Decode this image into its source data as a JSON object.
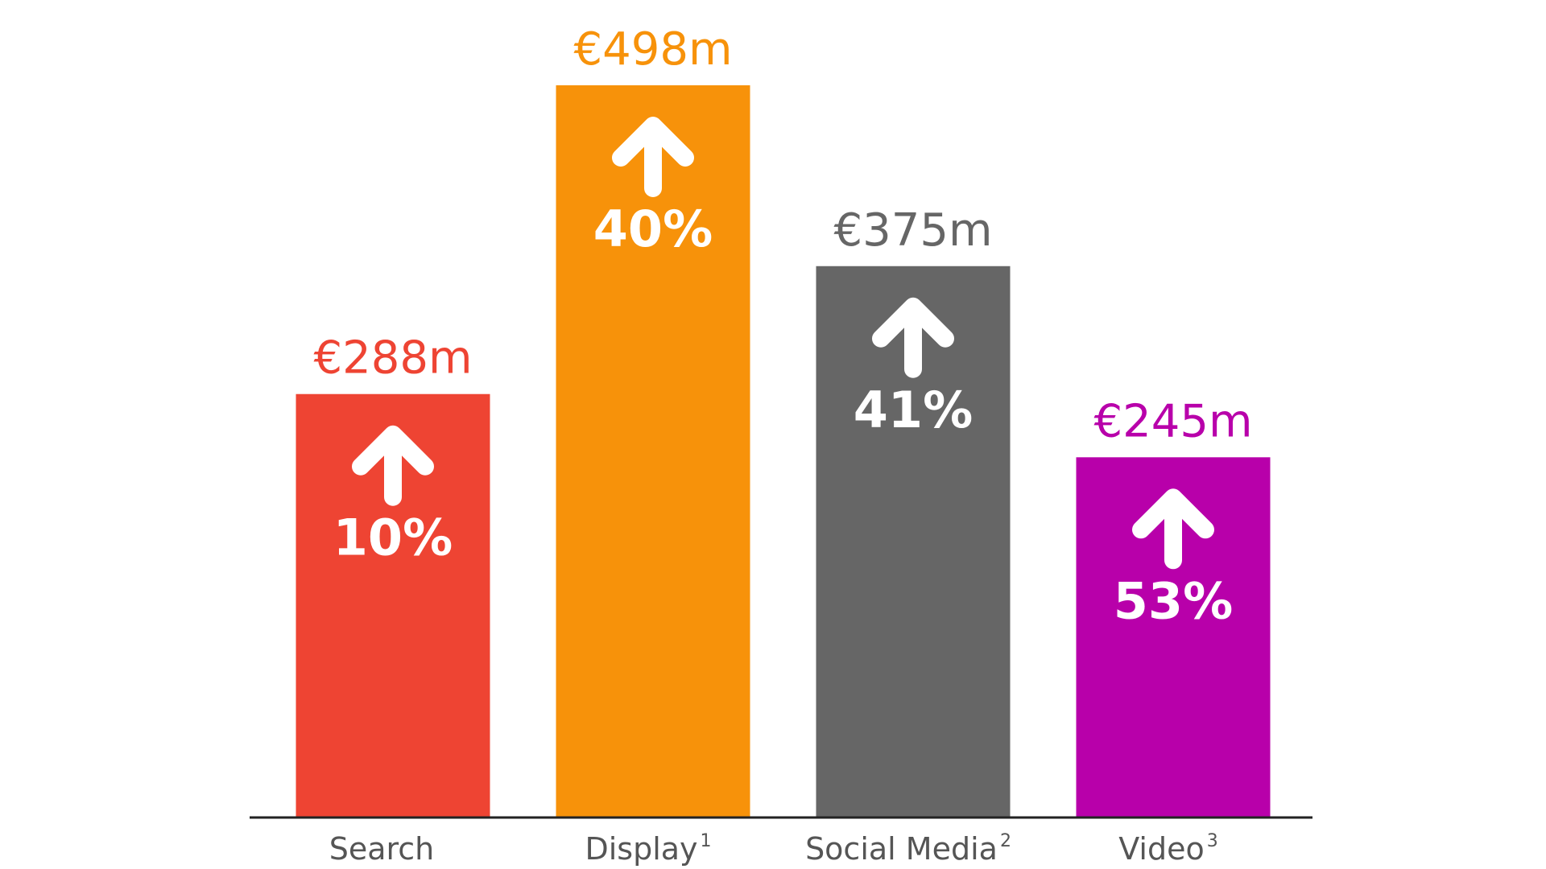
{
  "chart_data": {
    "type": "bar",
    "categories": [
      {
        "label": "Search",
        "footnote": ""
      },
      {
        "label": "Display",
        "footnote": "1"
      },
      {
        "label": "Social Media",
        "footnote": "2"
      },
      {
        "label": "Video",
        "footnote": "3"
      }
    ],
    "values": [
      288,
      498,
      375,
      245
    ],
    "value_labels": [
      "€288m",
      "€498m",
      "€375m",
      "€245m"
    ],
    "growth_labels": [
      "10%",
      "40%",
      "41%",
      "53%"
    ],
    "growth_direction": "up",
    "growth_icon": "arrow-up-icon",
    "colors": [
      "#ee4433",
      "#f7920a",
      "#666666",
      "#b800aa"
    ],
    "ylim": [
      0,
      498
    ],
    "grid": false,
    "legend": "none"
  }
}
